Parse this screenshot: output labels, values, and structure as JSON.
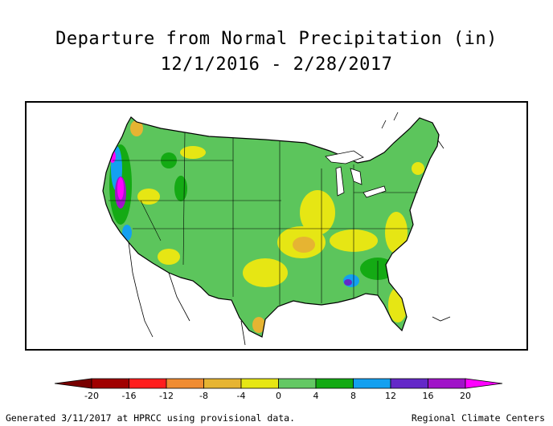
{
  "title": {
    "line1": "Departure from Normal Precipitation (in)",
    "line2": "12/1/2016 - 2/28/2017"
  },
  "map": {
    "region": "contiguous-us",
    "base_color": "#5cc55c"
  },
  "legend": {
    "bins": [
      {
        "color": "#a00000"
      },
      {
        "color": "#ff1e1e"
      },
      {
        "color": "#f08c32"
      },
      {
        "color": "#e6b432"
      },
      {
        "color": "#e6e614"
      },
      {
        "color": "#64c864"
      },
      {
        "color": "#14aa14"
      },
      {
        "color": "#14a0f0"
      },
      {
        "color": "#6428c8"
      },
      {
        "color": "#a014c8"
      }
    ],
    "under_color": "#780000",
    "over_color": "#ff00ff",
    "labels": [
      "-20",
      "-16",
      "-12",
      "-8",
      "-4",
      "0",
      "4",
      "8",
      "12",
      "16",
      "20"
    ]
  },
  "footer": {
    "left": "Generated 3/11/2017 at HPRCC using provisional data.",
    "right": "Regional Climate Centers"
  }
}
